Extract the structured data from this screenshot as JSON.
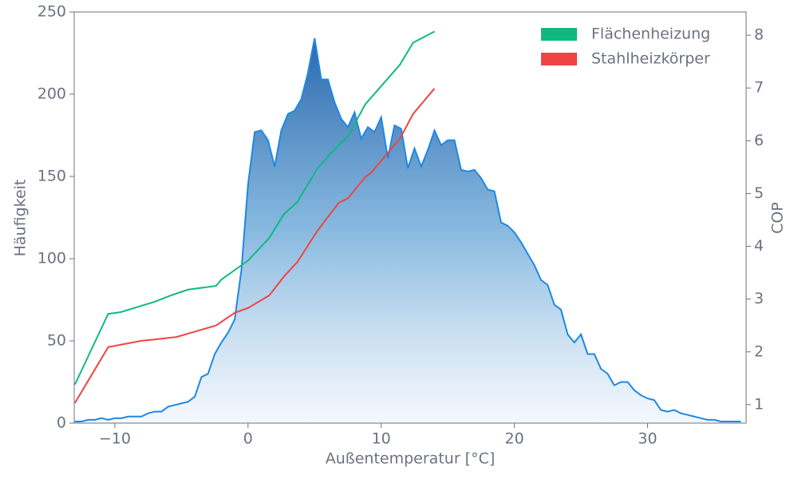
{
  "chart_data": {
    "type": "area",
    "xlabel": "Außentemperatur [°C]",
    "ylabel": "Häufigkeit",
    "y2label": "COP",
    "xlim": [
      -13.05,
      37.4
    ],
    "ylim": [
      0,
      250
    ],
    "y2lim": [
      0.65,
      8.44
    ],
    "xticks": [
      {
        "value": -10,
        "label": "−10"
      },
      0,
      10,
      20,
      30
    ],
    "yticks": [
      0,
      50,
      100,
      150,
      200,
      250
    ],
    "y2ticks": [
      1,
      2,
      3,
      4,
      5,
      6,
      7,
      8
    ],
    "grid": false,
    "legend": "upper right",
    "series": [
      {
        "type": "area",
        "color": "#1e88e5",
        "x": [
          -13,
          -12.5,
          -12,
          -11.5,
          -11,
          -10.5,
          -10,
          -9.5,
          -9,
          -8.5,
          -8,
          -7.5,
          -7,
          -6.5,
          -6,
          -5.5,
          -5,
          -4.5,
          -4,
          -3.5,
          -3,
          -2.5,
          -2,
          -1.5,
          -1,
          -0.5,
          0,
          0.5,
          1,
          1.5,
          2,
          2.5,
          3,
          3.5,
          4,
          4.5,
          5,
          5.5,
          6,
          6.5,
          7,
          7.5,
          8,
          8.5,
          9,
          9.5,
          10,
          10.5,
          11,
          11.5,
          12,
          12.5,
          13,
          13.5,
          14,
          14.5,
          15,
          15.5,
          16,
          16.5,
          17,
          17.5,
          18,
          18.5,
          19,
          19.5,
          20,
          20.5,
          21,
          21.5,
          22,
          22.5,
          23,
          23.5,
          24,
          24.5,
          25,
          25.5,
          26,
          26.5,
          27,
          27.5,
          28,
          28.5,
          29,
          29.5,
          30,
          30.5,
          31,
          31.5,
          32,
          32.5,
          33,
          33.5,
          34,
          34.5,
          35,
          35.5,
          36,
          36.5,
          37
        ],
        "values": [
          1,
          1,
          2,
          2,
          3,
          2,
          3,
          3,
          4,
          4,
          4,
          6,
          7,
          7,
          10,
          11,
          12,
          13,
          16,
          28,
          30,
          42,
          49,
          55,
          63,
          93,
          145,
          177,
          178,
          172,
          156,
          178,
          188,
          190,
          197,
          213,
          234,
          209,
          209,
          195,
          185,
          180,
          189,
          173,
          180,
          177,
          186,
          161,
          181,
          179,
          155,
          167,
          156,
          166,
          178,
          169,
          172,
          172,
          154,
          153,
          154,
          149,
          142,
          141,
          122,
          120,
          116,
          110,
          103,
          96,
          87,
          84,
          72,
          69,
          54,
          49,
          54,
          42,
          42,
          33,
          30,
          23,
          25,
          25,
          20,
          17,
          15,
          14,
          8,
          7,
          8,
          6,
          5,
          4,
          3,
          2,
          2,
          1,
          1,
          1,
          1
        ]
      },
      {
        "type": "line",
        "name": "Flächenheizung",
        "color": "#10b981",
        "axis": "y2",
        "x": [
          -13,
          -10.5,
          -9.6,
          -7,
          -5.8,
          -4.5,
          -2.4,
          -2,
          0,
          1.6,
          2.7,
          3.7,
          5.2,
          6.2,
          7.5,
          8.8,
          11.4,
          12.4,
          14
        ],
        "values": [
          1.38,
          2.72,
          2.75,
          2.95,
          3.07,
          3.18,
          3.25,
          3.37,
          3.73,
          4.16,
          4.61,
          4.84,
          5.47,
          5.76,
          6.08,
          6.69,
          7.44,
          7.86,
          8.07
        ]
      },
      {
        "type": "line",
        "name": "Stahlheizkörper",
        "color": "#ef4444",
        "axis": "y2",
        "x": [
          -13,
          -10.5,
          -8,
          -6.8,
          -5.8,
          -5.4,
          -2.4,
          -1,
          0,
          1.6,
          2.7,
          3.7,
          5.2,
          6.8,
          7.5,
          8.8,
          9.3,
          11.4,
          12.4,
          14
        ],
        "values": [
          1.03,
          2.09,
          2.21,
          2.24,
          2.27,
          2.28,
          2.5,
          2.74,
          2.83,
          3.07,
          3.43,
          3.7,
          4.29,
          4.82,
          4.91,
          5.31,
          5.41,
          6.04,
          6.51,
          6.99
        ]
      }
    ]
  }
}
